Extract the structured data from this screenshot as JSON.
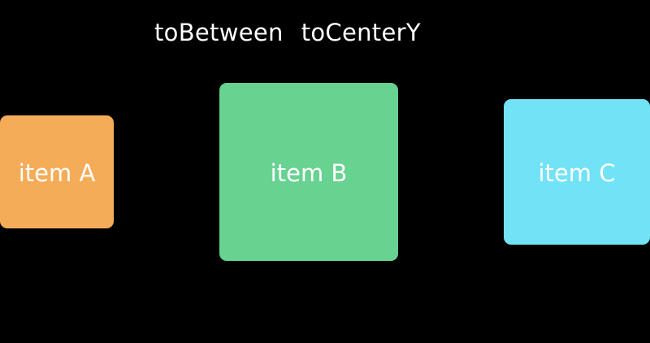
{
  "labels": {
    "first": "toBetween",
    "second": "toCenterY"
  },
  "items": [
    {
      "label": "item A",
      "color": "#F5AC58"
    },
    {
      "label": "item B",
      "color": "#68D291"
    },
    {
      "label": "item C",
      "color": "#72E3F6"
    }
  ]
}
